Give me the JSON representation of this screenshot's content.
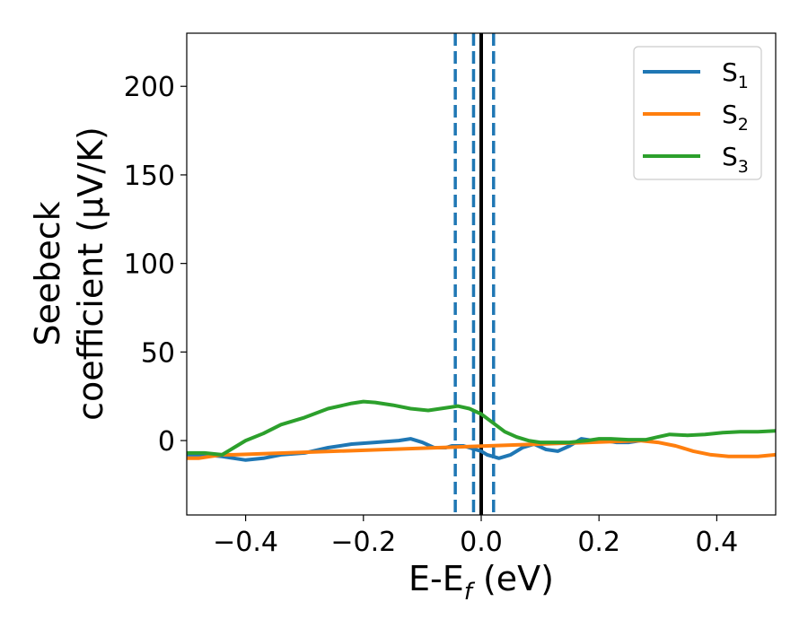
{
  "chart_data": {
    "type": "line",
    "xlabel": {
      "main": "E-E",
      "sub": "f",
      "suffix": " (eV)"
    },
    "ylabel": {
      "line1": "Seebeck",
      "line2": "coefficient  (μV/K)"
    },
    "xlim": [
      -0.5,
      0.5
    ],
    "ylim": [
      -42,
      230
    ],
    "xticks": [
      -0.4,
      -0.2,
      0.0,
      0.2,
      0.4
    ],
    "xtick_labels": [
      "−0.4",
      "−0.2",
      "0.0",
      "0.2",
      "0.4"
    ],
    "yticks": [
      0,
      50,
      100,
      150,
      200
    ],
    "ytick_labels": [
      "0",
      "50",
      "100",
      "150",
      "200"
    ],
    "grid": false,
    "legend_position": "top-right",
    "series": [
      {
        "name": "S",
        "sub": "1",
        "color": "#1f77b4",
        "x": [
          -0.5,
          -0.47,
          -0.44,
          -0.42,
          -0.4,
          -0.37,
          -0.34,
          -0.3,
          -0.26,
          -0.22,
          -0.18,
          -0.14,
          -0.12,
          -0.1,
          -0.08,
          -0.06,
          -0.05,
          -0.03,
          -0.02,
          -0.01,
          0.0,
          0.01,
          0.02,
          0.03,
          0.05,
          0.07,
          0.09,
          0.11,
          0.13,
          0.15,
          0.17,
          0.19,
          0.21,
          0.23,
          0.25,
          0.27
        ],
        "y": [
          -8,
          -8,
          -9,
          -10,
          -11,
          -10,
          -8,
          -7,
          -4,
          -2,
          -1,
          0,
          1,
          -1,
          -4,
          -4,
          -3,
          -3,
          -4,
          -5,
          -6,
          -8,
          -9,
          -10,
          -8,
          -4,
          -2,
          -5,
          -6,
          -3,
          1,
          0,
          0,
          -1,
          -1,
          0
        ]
      },
      {
        "name": "S",
        "sub": "2",
        "color": "#ff7f0e",
        "x": [
          -0.5,
          -0.48,
          -0.46,
          -0.44,
          -0.42,
          0.27,
          0.3,
          0.33,
          0.36,
          0.39,
          0.42,
          0.45,
          0.47,
          0.5
        ],
        "y": [
          -10,
          -10,
          -9,
          -8,
          -8,
          0,
          -1,
          -3,
          -6,
          -8,
          -9,
          -9,
          -9,
          -8
        ]
      },
      {
        "name": "S",
        "sub": "3",
        "color": "#2ca02c",
        "x": [
          -0.5,
          -0.47,
          -0.44,
          -0.42,
          -0.4,
          -0.37,
          -0.34,
          -0.3,
          -0.26,
          -0.22,
          -0.2,
          -0.18,
          -0.15,
          -0.12,
          -0.09,
          -0.06,
          -0.04,
          -0.02,
          0.0,
          0.02,
          0.04,
          0.06,
          0.08,
          0.1,
          0.12,
          0.15,
          0.18,
          0.2,
          0.22,
          0.25,
          0.28,
          0.3,
          0.32,
          0.35,
          0.38,
          0.41,
          0.44,
          0.47,
          0.5
        ],
        "y": [
          -7,
          -7,
          -8,
          -4,
          0,
          4,
          9,
          13,
          18,
          21,
          22,
          21.5,
          20,
          18,
          17,
          18.5,
          19.5,
          18,
          15,
          10,
          5,
          2,
          0,
          -1,
          -1,
          -1,
          0,
          1,
          1,
          0.5,
          0.5,
          2,
          3.5,
          3,
          3.5,
          4.5,
          5,
          5,
          5.5
        ]
      }
    ],
    "vlines": [
      {
        "x": -0.044,
        "style": "dashed",
        "color": "#1f77b4"
      },
      {
        "x": -0.013,
        "style": "dashed",
        "color": "#1f77b4"
      },
      {
        "x": 0.021,
        "style": "dashed",
        "color": "#1f77b4"
      },
      {
        "x": 0.0,
        "style": "solid",
        "color": "#000000"
      }
    ]
  }
}
